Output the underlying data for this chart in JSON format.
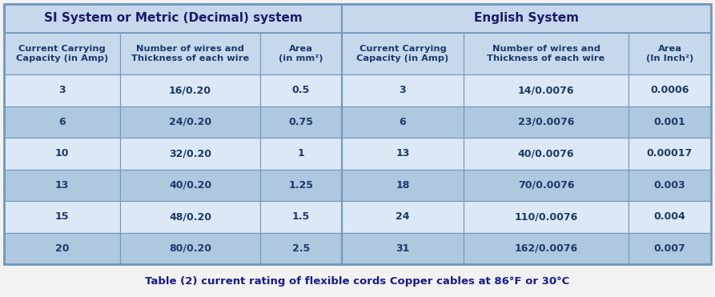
{
  "title": "Table (2) current rating of flexible cords Copper cables at 86°F or 30°C",
  "main_header_left": "SI System or Metric (Decimal) system",
  "main_header_right": "English System",
  "col_headers": [
    "Current Carrying\nCapacity (in Amp)",
    "Number of wires and\nThickness of each wire",
    "Area\n(in mm²)",
    "Current Carrying\nCapacity (in Amp)",
    "Number of wires and\nThickness of each wire",
    "Area\n(In Inch²)"
  ],
  "rows": [
    [
      "3",
      "16/0.20",
      "0.5",
      "3",
      "14/0.0076",
      "0.0006"
    ],
    [
      "6",
      "24/0.20",
      "0.75",
      "6",
      "23/0.0076",
      "0.001"
    ],
    [
      "10",
      "32/0.20",
      "1",
      "13",
      "40/0.0076",
      "0.00017"
    ],
    [
      "13",
      "40/0.20",
      "1.25",
      "18",
      "70/0.0076",
      "0.003"
    ],
    [
      "15",
      "48/0.20",
      "1.5",
      "24",
      "110/0.0076",
      "0.004"
    ],
    [
      "20",
      "80/0.20",
      "2.5",
      "31",
      "162/0.0076",
      "0.007"
    ]
  ],
  "color_main_header_left_bg": "#c8d8ec",
  "color_main_header_right_bg": "#c8d8ec",
  "color_col_header_bg": "#c8d8ec",
  "color_row_light_bg": "#dce8f5",
  "color_row_dark_bg": "#aec8e0",
  "color_header_text": "#1a3a6b",
  "color_main_header_text": "#1a1a6e",
  "color_data_text": "#1a3a6b",
  "color_title_text": "#1a1a8a",
  "color_border": "#7098bc",
  "color_divider": "#7098bc",
  "fig_bg": "#f2f2f2",
  "table_bg": "#f0f4fa"
}
